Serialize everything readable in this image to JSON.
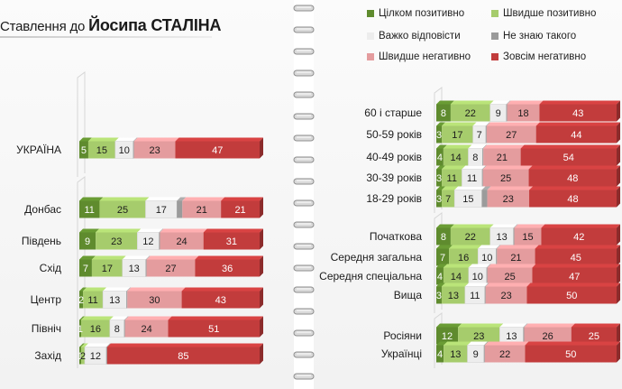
{
  "title": {
    "lead": "Ставлення до ",
    "strong": "Йосипа СТАЛІНА"
  },
  "legend": {
    "items": [
      {
        "label": "Цілком позитивно",
        "color": "#5f8b2e"
      },
      {
        "label": "Швидше позитивно",
        "color": "#a6cc6c"
      },
      {
        "label": "Важко відповісти",
        "color": "#ededed"
      },
      {
        "label": "Не знаю такого",
        "color": "#9b9b9b"
      },
      {
        "label": "Швидше негативно",
        "color": "#e49c9e"
      },
      {
        "label": "Зовсім негативно",
        "color": "#c23c3c"
      }
    ]
  },
  "chart_data": {
    "type": "bar",
    "orientation": "horizontal",
    "stacked": true,
    "percent_total": 100,
    "series_names": [
      "Цілком позитивно",
      "Швидше позитивно",
      "Важко відповісти",
      "Не знаю такого",
      "Швидше негативно",
      "Зовсім негативно"
    ],
    "colors": [
      "#5f8b2e",
      "#a6cc6c",
      "#ededed",
      "#9b9b9b",
      "#e49c9e",
      "#c23c3c"
    ],
    "panels": [
      {
        "name": "left",
        "groups": [
          {
            "rows": [
              {
                "label": "УКРАЇНА",
                "values": [
                  5,
                  15,
                  10,
                  0.5,
                  23,
                  47
                ],
                "labels": [
                  "5",
                  "15",
                  "10",
                  "",
                  "23",
                  "47"
                ]
              }
            ]
          },
          {
            "rows": [
              {
                "label": "Донбас",
                "values": [
                  11,
                  25,
                  17,
                  3,
                  21,
                  21
                ],
                "labels": [
                  "11",
                  "25",
                  "17",
                  "",
                  "21",
                  "21"
                ]
              },
              {
                "label": "Південь",
                "values": [
                  9,
                  23,
                  12,
                  0.5,
                  24,
                  31
                ],
                "labels": [
                  "9",
                  "23",
                  "12",
                  "",
                  "24",
                  "31"
                ]
              },
              {
                "label": "Схід",
                "values": [
                  7,
                  17,
                  13,
                  0.5,
                  27,
                  36
                ],
                "labels": [
                  "7",
                  "17",
                  "13",
                  "",
                  "27",
                  "36"
                ]
              },
              {
                "label": "Центр",
                "values": [
                  2,
                  11,
                  13,
                  0.5,
                  30,
                  43
                ],
                "labels": [
                  "2",
                  "11",
                  "13",
                  "",
                  "30",
                  "43"
                ]
              },
              {
                "label": "Північ",
                "values": [
                  1,
                  16,
                  8,
                  0.5,
                  24,
                  51
                ],
                "labels": [
                  "1",
                  "16",
                  "8",
                  "",
                  "24",
                  "51"
                ]
              },
              {
                "label": "Захід",
                "values": [
                  1,
                  2,
                  12,
                  0.5,
                  0,
                  85
                ],
                "labels": [
                  "1",
                  "2",
                  "12",
                  "",
                  "",
                  "85"
                ]
              }
            ]
          }
        ]
      },
      {
        "name": "right",
        "groups": [
          {
            "rows": [
              {
                "label": "60 і старше",
                "values": [
                  8,
                  22,
                  9,
                  0.5,
                  18,
                  43
                ],
                "labels": [
                  "8",
                  "22",
                  "9",
                  "",
                  "18",
                  "43"
                ]
              },
              {
                "label": "50-59 років",
                "values": [
                  3,
                  17,
                  7,
                  0.5,
                  27,
                  44
                ],
                "labels": [
                  "3",
                  "17",
                  "7",
                  "",
                  "27",
                  "44"
                ]
              },
              {
                "label": "40-49 років",
                "values": [
                  4,
                  14,
                  8,
                  0.5,
                  21,
                  54
                ],
                "labels": [
                  "4",
                  "14",
                  "8",
                  "",
                  "21",
                  "54"
                ]
              },
              {
                "label": "30-39 років",
                "values": [
                  3,
                  11,
                  11,
                  0.5,
                  25,
                  48
                ],
                "labels": [
                  "3",
                  "11",
                  "11",
                  "",
                  "25",
                  "48"
                ]
              },
              {
                "label": "18-29 років",
                "values": [
                  3,
                  7,
                  15,
                  3,
                  23,
                  48
                ],
                "labels": [
                  "3",
                  "7",
                  "15",
                  "",
                  "23",
                  "48"
                ]
              }
            ]
          },
          {
            "rows": [
              {
                "label": "Початкова",
                "values": [
                  8,
                  22,
                  13,
                  0.5,
                  15,
                  42
                ],
                "labels": [
                  "8",
                  "22",
                  "13",
                  "",
                  "15",
                  "42"
                ]
              },
              {
                "label": "Середня загальна",
                "values": [
                  7,
                  16,
                  10,
                  0.5,
                  21,
                  45
                ],
                "labels": [
                  "7",
                  "16",
                  "10",
                  "",
                  "21",
                  "45"
                ]
              },
              {
                "label": "Середня спеціальна",
                "values": [
                  4,
                  14,
                  10,
                  0.5,
                  25,
                  47
                ],
                "labels": [
                  "4",
                  "14",
                  "10",
                  "",
                  "25",
                  "47"
                ]
              },
              {
                "label": "Вища",
                "values": [
                  3,
                  13,
                  11,
                  0.5,
                  23,
                  50
                ],
                "labels": [
                  "3",
                  "13",
                  "11",
                  "",
                  "23",
                  "50"
                ]
              }
            ]
          },
          {
            "rows": [
              {
                "label": "Росіяни",
                "values": [
                  12,
                  23,
                  13,
                  0.5,
                  26,
                  25
                ],
                "labels": [
                  "12",
                  "23",
                  "13",
                  "",
                  "26",
                  "25"
                ]
              },
              {
                "label": "Українці",
                "values": [
                  4,
                  13,
                  9,
                  0.5,
                  22,
                  50
                ],
                "labels": [
                  "4",
                  "13",
                  "9",
                  "",
                  "22",
                  "50"
                ]
              }
            ]
          }
        ]
      }
    ]
  }
}
